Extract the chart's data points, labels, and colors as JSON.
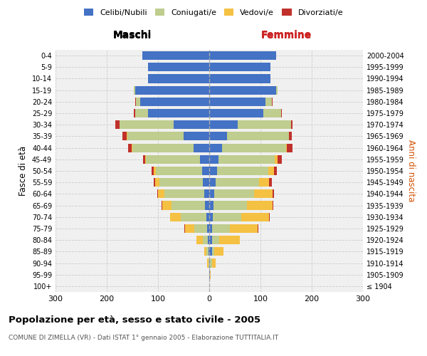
{
  "age_groups": [
    "100+",
    "95-99",
    "90-94",
    "85-89",
    "80-84",
    "75-79",
    "70-74",
    "65-69",
    "60-64",
    "55-59",
    "50-54",
    "45-49",
    "40-44",
    "35-39",
    "30-34",
    "25-29",
    "20-24",
    "15-19",
    "10-14",
    "5-9",
    "0-4"
  ],
  "birth_years": [
    "≤ 1904",
    "1905-1909",
    "1910-1914",
    "1915-1919",
    "1920-1924",
    "1925-1929",
    "1930-1934",
    "1935-1939",
    "1940-1944",
    "1945-1949",
    "1950-1954",
    "1955-1959",
    "1960-1964",
    "1965-1969",
    "1970-1974",
    "1975-1979",
    "1980-1984",
    "1985-1989",
    "1990-1994",
    "1995-1999",
    "2000-2004"
  ],
  "maschi_celibi": [
    0,
    0,
    0,
    2,
    3,
    4,
    6,
    8,
    10,
    12,
    14,
    18,
    30,
    50,
    70,
    120,
    135,
    145,
    120,
    120,
    130
  ],
  "maschi_coniugati": [
    0,
    0,
    2,
    3,
    10,
    25,
    50,
    65,
    78,
    85,
    90,
    105,
    120,
    110,
    105,
    25,
    8,
    2,
    0,
    0,
    0
  ],
  "maschi_vedovi": [
    0,
    0,
    2,
    5,
    12,
    18,
    20,
    18,
    12,
    8,
    5,
    2,
    1,
    1,
    0,
    0,
    0,
    0,
    0,
    0,
    0
  ],
  "maschi_divorziati": [
    0,
    0,
    0,
    0,
    0,
    1,
    1,
    2,
    2,
    3,
    3,
    4,
    8,
    8,
    8,
    2,
    1,
    0,
    0,
    0,
    0
  ],
  "femmine_celibi": [
    0,
    1,
    2,
    5,
    5,
    5,
    7,
    8,
    10,
    12,
    15,
    18,
    25,
    35,
    55,
    105,
    110,
    130,
    120,
    120,
    130
  ],
  "femmine_coniugati": [
    0,
    0,
    3,
    5,
    15,
    35,
    55,
    65,
    78,
    85,
    100,
    110,
    125,
    120,
    105,
    35,
    12,
    3,
    0,
    0,
    0
  ],
  "femmine_vedovi": [
    0,
    2,
    8,
    18,
    40,
    55,
    55,
    50,
    35,
    20,
    12,
    5,
    2,
    1,
    0,
    0,
    0,
    0,
    0,
    0,
    0
  ],
  "femmine_divorziati": [
    0,
    0,
    0,
    0,
    0,
    1,
    1,
    2,
    3,
    5,
    5,
    8,
    10,
    5,
    3,
    2,
    1,
    0,
    0,
    0,
    0
  ],
  "color_celibi": "#4472C4",
  "color_coniugati": "#BFCD8E",
  "color_vedovi": "#F5C143",
  "color_divorziati": "#C0312B",
  "title_main": "Popolazione per età, sesso e stato civile - 2005",
  "title_sub": "COMUNE DI ZIMELLA (VR) - Dati ISTAT 1° gennaio 2005 - Elaborazione TUTTITALIA.IT",
  "xlabel_left": "Maschi",
  "xlabel_right": "Femmine",
  "ylabel_left": "Fasce di età",
  "ylabel_right": "Anni di nascita",
  "xlim": 300,
  "bg_color": "#f0f0f0",
  "grid_color": "#cccccc"
}
